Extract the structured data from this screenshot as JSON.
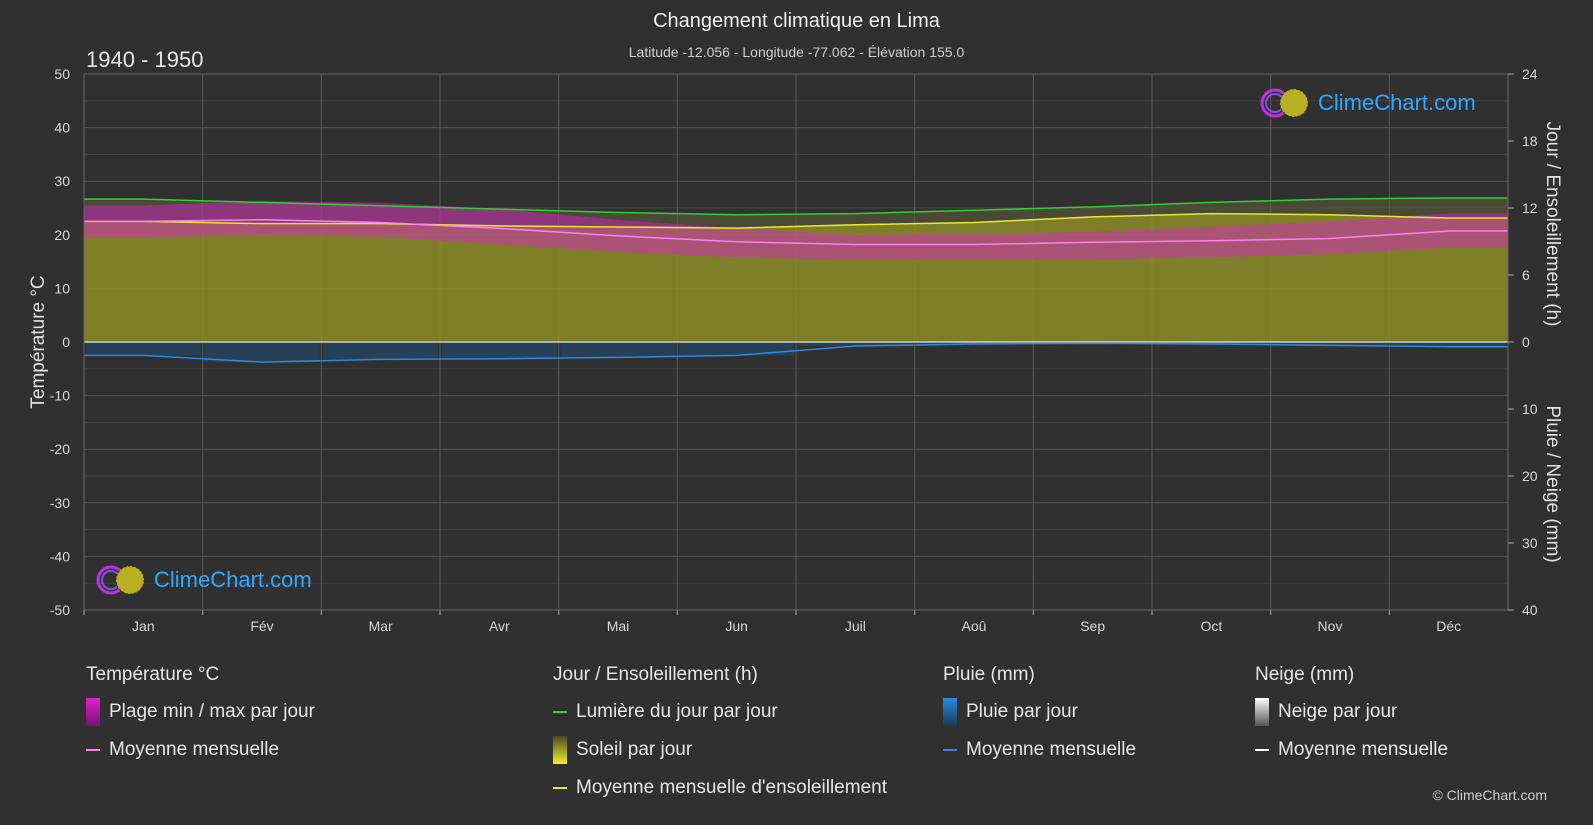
{
  "title": "Changement climatique en Lima",
  "subtitle": "Latitude -12.056 - Longitude -77.062 - Élévation 155.0",
  "period": "1940 - 1950",
  "logo_text": "ClimeChart.com",
  "copyright": "© ClimeChart.com",
  "colors": {
    "background": "#303030",
    "temp_range": "#e020d0",
    "temp_mean": "#ff80f0",
    "daylight": "#30d030",
    "sunshine_fill": "#a8a820",
    "sunshine_mean": "#e8e830",
    "rain": "#2a6fd0",
    "rain_mean": "#2a8ae0",
    "logo_text": "#2fa8ff"
  },
  "legend": {
    "temperature": {
      "head": "Température °C",
      "items": [
        "Plage min / max par jour",
        "Moyenne mensuelle"
      ]
    },
    "sun": {
      "head": "Jour / Ensoleillement (h)",
      "items": [
        "Lumière du jour par jour",
        "Soleil par jour",
        "Moyenne mensuelle d'ensoleillement"
      ]
    },
    "rain": {
      "head": "Pluie (mm)",
      "items": [
        "Pluie par jour",
        "Moyenne mensuelle"
      ]
    },
    "snow": {
      "head": "Neige (mm)",
      "items": [
        "Neige par jour",
        "Moyenne mensuelle"
      ]
    }
  },
  "chart_data": {
    "type": "line",
    "categories": [
      "Jan",
      "Fév",
      "Mar",
      "Avr",
      "Mai",
      "Jun",
      "Juil",
      "Aoû",
      "Sep",
      "Oct",
      "Nov",
      "Déc"
    ],
    "y_left": {
      "label": "Température °C",
      "range": [
        -50,
        50
      ],
      "ticks": [
        50,
        40,
        30,
        20,
        10,
        0,
        -10,
        -20,
        -30,
        -40,
        -50
      ]
    },
    "y_right_top": {
      "label": "Jour / Ensoleillement (h)",
      "range": [
        0,
        24
      ],
      "ticks": [
        24,
        18,
        12,
        6,
        0
      ]
    },
    "y_right_bottom": {
      "label": "Pluie / Neige (mm)",
      "range": [
        0,
        40
      ],
      "ticks": [
        0,
        10,
        20,
        30,
        40
      ]
    },
    "grid": true,
    "series": [
      {
        "name": "Lumière du jour par jour",
        "axis": "hours",
        "values": [
          12.8,
          12.5,
          12.2,
          11.9,
          11.6,
          11.4,
          11.5,
          11.8,
          12.1,
          12.5,
          12.8,
          12.9
        ]
      },
      {
        "name": "Moyenne mensuelle d'ensoleillement",
        "axis": "hours",
        "values": [
          10.8,
          10.6,
          10.6,
          10.4,
          10.3,
          10.2,
          10.5,
          10.7,
          11.2,
          11.5,
          11.4,
          11.1
        ]
      },
      {
        "name": "Temp. moyenne mensuelle",
        "axis": "temp",
        "values": [
          22.5,
          22.8,
          22.3,
          21.2,
          19.8,
          18.7,
          18.2,
          18.2,
          18.6,
          18.9,
          19.3,
          20.7
        ]
      },
      {
        "name": "Temp. max",
        "axis": "temp",
        "values": [
          25.5,
          26.3,
          26.0,
          24.8,
          22.8,
          21.2,
          20.0,
          20.2,
          20.6,
          21.5,
          22.5,
          24.0
        ]
      },
      {
        "name": "Temp. min",
        "axis": "temp",
        "values": [
          19.5,
          20.0,
          19.6,
          18.2,
          16.8,
          15.8,
          15.3,
          15.3,
          15.4,
          15.8,
          16.4,
          17.6
        ]
      },
      {
        "name": "Pluie moyenne mensuelle",
        "axis": "rain_mm",
        "values": [
          2.0,
          3.0,
          2.6,
          2.5,
          2.3,
          2.0,
          0.6,
          0.3,
          0.2,
          0.3,
          0.5,
          0.7
        ]
      }
    ]
  }
}
